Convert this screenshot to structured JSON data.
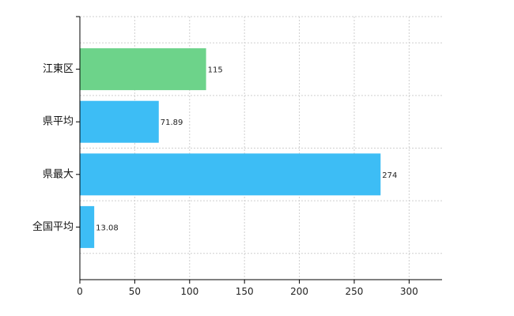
{
  "chart_data": {
    "type": "bar",
    "orientation": "horizontal",
    "categories": [
      "江東区",
      "県平均",
      "県最大",
      "全国平均"
    ],
    "values": [
      115,
      71.89,
      274,
      13.08
    ],
    "value_labels": [
      "115",
      "71.89",
      "274",
      "13.08"
    ],
    "bar_colors": [
      "#6dd38a",
      "#3dbdf5",
      "#3dbdf5",
      "#3dbdf5"
    ],
    "xlim": [
      0,
      330
    ],
    "x_ticks": [
      0,
      50,
      100,
      150,
      200,
      250,
      300
    ],
    "x_tick_labels": [
      "0",
      "50",
      "100",
      "150",
      "200",
      "250",
      "300"
    ],
    "grid": true,
    "legend": false
  }
}
